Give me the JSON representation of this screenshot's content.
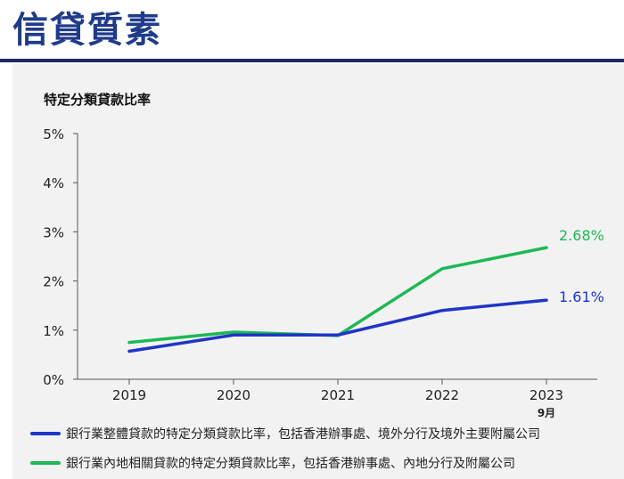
{
  "page": {
    "title": "信貸質素"
  },
  "chart_data": {
    "type": "line",
    "title": "特定分類貸款比率",
    "categories": [
      "2019",
      "2020",
      "2021",
      "2022",
      "2023"
    ],
    "category_sublabels": [
      "",
      "",
      "",
      "",
      "9月"
    ],
    "y_ticks": [
      "0%",
      "1%",
      "2%",
      "3%",
      "4%",
      "5%"
    ],
    "ylim": [
      0,
      5
    ],
    "series": [
      {
        "name": "銀行業整體貸款的特定分類貸款比率，包括香港辦事處、境外分行及境外主要附屬公司",
        "color": "#1f35c8",
        "values": [
          0.57,
          0.9,
          0.9,
          1.4,
          1.61
        ],
        "end_label": "1.61%"
      },
      {
        "name": "銀行業內地相關貸款的特定分類貸款比率，包括香港辦事處、內地分行及附屬公司",
        "color": "#1db954",
        "values": [
          0.75,
          0.96,
          0.89,
          2.25,
          2.68
        ],
        "end_label": "2.68%"
      }
    ]
  }
}
